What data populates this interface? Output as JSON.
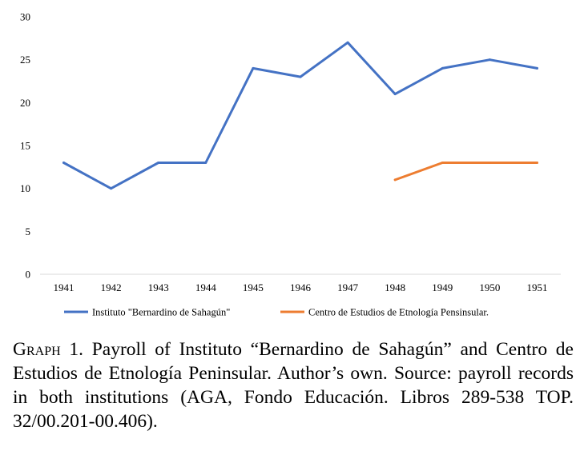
{
  "chart_data": {
    "type": "line",
    "categories": [
      "1941",
      "1942",
      "1943",
      "1944",
      "1945",
      "1946",
      "1947",
      "1948",
      "1949",
      "1950",
      "1951"
    ],
    "series": [
      {
        "name": "Instituto \"Bernardino de Sahagún\"",
        "color": "#4472C4",
        "values": [
          13,
          10,
          13,
          13,
          24,
          23,
          27,
          21,
          24,
          25,
          24
        ]
      },
      {
        "name": "Centro de Estudios de Etnología Pensinsular.",
        "color": "#ED7D31",
        "values": [
          null,
          null,
          null,
          null,
          null,
          null,
          null,
          11,
          13,
          13,
          13
        ]
      }
    ],
    "ylim": [
      0,
      30
    ],
    "yticks": [
      0,
      5,
      10,
      15,
      20,
      25,
      30
    ],
    "grid": false,
    "legend_position": "bottom"
  },
  "caption": {
    "label": "Graph",
    "text": " 1. Payroll of Instituto “Bernardino de Sahagún” and Centro de Estudios de Etnología Peninsular. Author’s own. Source: payroll records in both institutions (AGA, Fondo Educación. Libros 289-538 TOP. 32/00.201-00.406)."
  }
}
